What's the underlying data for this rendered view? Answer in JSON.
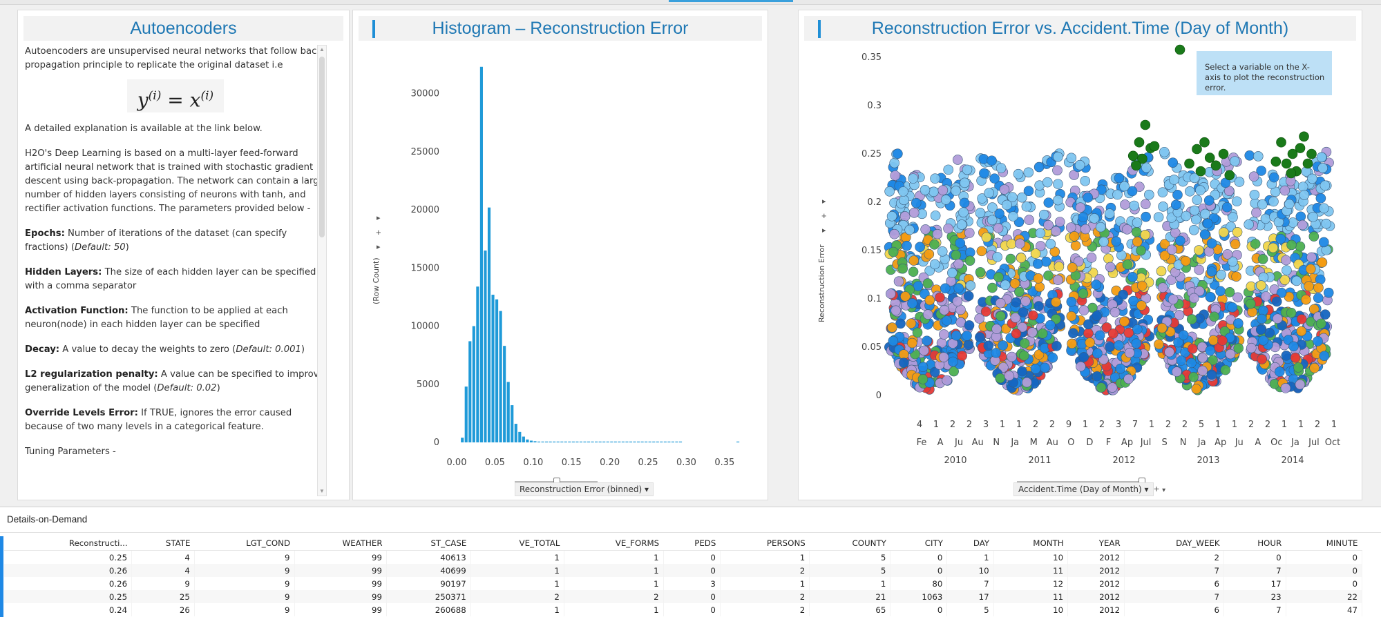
{
  "panels": {
    "autoencoders": {
      "title": "Autoencoders",
      "intro": "Autoencoders are unsupervised neural networks that follow back propagation principle to replicate the original dataset i.e",
      "equation_lhs": "y",
      "equation_sup": "(i)",
      "equation_eq": " = ",
      "equation_rhs": "x",
      "link_note": "A detailed explanation is available at the link below.",
      "h2o_text": "H2O's Deep Learning is based on a multi-layer feed-forward artificial neural network that is trained with stochastic gradient descent using back-propagation. The network can contain a large number of hidden layers consisting of neurons with tanh, and rectifier activation functions. The parameters provided below -",
      "params": [
        {
          "name": "Epochs:",
          "desc": " Number of iterations of the dataset (can specify fractions) (",
          "default": "Default: 50",
          "tail": ")"
        },
        {
          "name": "Hidden Layers:",
          "desc": " The size of each hidden layer can be specified with a comma separator",
          "default": "",
          "tail": ""
        },
        {
          "name": "Activation Function:",
          "desc": " The function to be applied at each neuron(node) in each hidden layer can be specified",
          "default": "",
          "tail": ""
        },
        {
          "name": "Decay:",
          "desc": " A value to decay the weights to zero (",
          "default": "Default: 0.001",
          "tail": ")"
        },
        {
          "name": "L2 regularization penalty:",
          "desc": " A value can be specified to improve generalization of the model (",
          "default": "Default: 0.02",
          "tail": ")"
        },
        {
          "name": "Override Levels Error:",
          "desc": " If TRUE, ignores the error caused because of two many levels in a categorical feature.",
          "default": "",
          "tail": ""
        }
      ],
      "tuning": "Tuning Parameters -"
    },
    "histogram": {
      "title": "Histogram – Reconstruction Error",
      "ylabel": "(Row Count)",
      "xaxis_dropdown": "Reconstruction Error (binned)",
      "side_controls": [
        "▸",
        "+",
        "▸"
      ]
    },
    "scatter": {
      "title": "Reconstruction Error vs. Accident.Time (Day of Month)",
      "ylabel": "Reconstruction Error",
      "xaxis_dropdown": "Accident.Time (Day of Month)",
      "tooltip": "Select a variable on the X-axis to plot the reconstruction error.",
      "side_controls": [
        "▸",
        "+",
        "▸"
      ],
      "plus_label": "+"
    }
  },
  "chart_data": [
    {
      "type": "bar",
      "title": "Histogram – Reconstruction Error",
      "xlabel": "Reconstruction Error (binned)",
      "ylabel": "(Row Count)",
      "xlim": [
        0.0,
        0.37
      ],
      "ylim": [
        0,
        33000
      ],
      "xticks": [
        "0.00",
        "0.05",
        "0.10",
        "0.15",
        "0.20",
        "0.25",
        "0.30",
        "0.35"
      ],
      "yticks": [
        "0",
        "5000",
        "10000",
        "15000",
        "20000",
        "25000",
        "30000"
      ],
      "bin_width": 0.005,
      "bins": [
        0.0,
        0.005,
        0.01,
        0.015,
        0.02,
        0.025,
        0.03,
        0.035,
        0.04,
        0.045,
        0.05,
        0.055,
        0.06,
        0.065,
        0.07,
        0.075,
        0.08,
        0.085,
        0.09,
        0.095,
        0.1,
        0.105,
        0.11,
        0.115,
        0.12,
        0.125,
        0.13,
        0.135,
        0.14,
        0.145,
        0.15,
        0.155,
        0.16,
        0.165,
        0.17,
        0.175,
        0.18,
        0.185,
        0.19,
        0.195,
        0.2,
        0.205,
        0.21,
        0.215,
        0.22,
        0.225,
        0.23,
        0.235,
        0.24,
        0.245,
        0.25,
        0.255,
        0.26,
        0.265,
        0.27,
        0.275,
        0.28,
        0.285,
        0.29,
        0.295,
        0.3,
        0.305,
        0.31,
        0.315,
        0.32,
        0.325,
        0.33,
        0.335,
        0.34,
        0.345,
        0.35,
        0.355,
        0.36,
        0.365
      ],
      "values": [
        0,
        400,
        4800,
        8700,
        10000,
        13400,
        32300,
        16500,
        20200,
        12700,
        12300,
        11300,
        8300,
        5200,
        3200,
        1600,
        900,
        500,
        250,
        150,
        100,
        70,
        50,
        40,
        30,
        30,
        25,
        20,
        20,
        20,
        20,
        20,
        20,
        20,
        20,
        20,
        20,
        20,
        20,
        20,
        20,
        20,
        20,
        20,
        20,
        20,
        20,
        20,
        20,
        20,
        20,
        20,
        20,
        20,
        20,
        20,
        20,
        20,
        20,
        0,
        0,
        0,
        0,
        0,
        0,
        0,
        0,
        0,
        0,
        0,
        0,
        0,
        0,
        60
      ],
      "color": "#1f9ad8"
    },
    {
      "type": "scatter",
      "title": "Reconstruction Error vs. Accident.Time (Day of Month)",
      "ylabel": "Reconstruction Error",
      "xlabel": "Accident.Time (Day of Month)",
      "ylim": [
        0,
        0.37
      ],
      "yticks": [
        "0",
        "0.05",
        "0.1",
        "0.15",
        "0.2",
        "0.25",
        "0.3",
        "0.35"
      ],
      "x_tick_labels_row1": [
        "4",
        "1",
        "2",
        "2",
        "3",
        "1",
        "1",
        "2",
        "2",
        "9",
        "1",
        "2",
        "3",
        "7",
        "1",
        "2",
        "2",
        "5",
        "1",
        "1",
        "2",
        "2",
        "1",
        "1",
        "2",
        "1"
      ],
      "x_tick_labels_row2": [
        "Fe",
        "A",
        "Ju",
        "Au",
        "N",
        "Ja",
        "M",
        "Au",
        "O",
        "D",
        "F",
        "Ap",
        "Jul",
        "S",
        "N",
        "Ja",
        "Ap",
        "Ju",
        "A",
        "Oc",
        "Ja",
        "Jul",
        "Oct"
      ],
      "x_years": [
        "2010",
        "2011",
        "2012",
        "2013",
        "2014"
      ],
      "palette": [
        "#1e88e5",
        "#7fc6f0",
        "#b19cd9",
        "#f1d64b",
        "#4caf50",
        "#f39c12",
        "#e53935",
        "#1565c0",
        "#a6d8f7"
      ],
      "outlier_color": "#1a7a1a",
      "outliers": [
        {
          "year": "2012",
          "offset": 0.78,
          "y": 0.28
        },
        {
          "year": "2012",
          "offset": 0.7,
          "y": 0.262
        },
        {
          "year": "2012",
          "offset": 0.85,
          "y": 0.256
        },
        {
          "year": "2012",
          "offset": 0.62,
          "y": 0.248
        },
        {
          "year": "2012",
          "offset": 0.74,
          "y": 0.245
        },
        {
          "year": "2012",
          "offset": 0.9,
          "y": 0.258
        },
        {
          "year": "2012",
          "offset": 0.66,
          "y": 0.238
        },
        {
          "year": "2013",
          "offset": 0.25,
          "y": 0.24
        },
        {
          "year": "2013",
          "offset": 0.35,
          "y": 0.255
        },
        {
          "year": "2013",
          "offset": 0.45,
          "y": 0.262
        },
        {
          "year": "2013",
          "offset": 0.52,
          "y": 0.246
        },
        {
          "year": "2013",
          "offset": 0.6,
          "y": 0.238
        },
        {
          "year": "2013",
          "offset": 0.4,
          "y": 0.232
        },
        {
          "year": "2013",
          "offset": 0.7,
          "y": 0.25
        },
        {
          "year": "2013",
          "offset": 0.78,
          "y": 0.228
        },
        {
          "year": "2014",
          "offset": 0.35,
          "y": 0.262
        },
        {
          "year": "2014",
          "offset": 0.5,
          "y": 0.25
        },
        {
          "year": "2014",
          "offset": 0.6,
          "y": 0.256
        },
        {
          "year": "2014",
          "offset": 0.42,
          "y": 0.24
        },
        {
          "year": "2014",
          "offset": 0.7,
          "y": 0.24
        },
        {
          "year": "2014",
          "offset": 0.28,
          "y": 0.242
        },
        {
          "year": "2014",
          "offset": 0.55,
          "y": 0.232
        },
        {
          "year": "2014",
          "offset": 0.75,
          "y": 0.25
        },
        {
          "year": "2014",
          "offset": 0.65,
          "y": 0.268
        },
        {
          "year": "2014",
          "offset": 0.48,
          "y": 0.23
        },
        {
          "legend_dot": true,
          "y": 0.37
        }
      ]
    }
  ],
  "details": {
    "title": "Details-on-Demand",
    "columns": [
      "Reconstructi...",
      "STATE",
      "LGT_COND",
      "WEATHER",
      "ST_CASE",
      "VE_TOTAL",
      "VE_FORMS",
      "PEDS",
      "PERSONS",
      "COUNTY",
      "CITY",
      "DAY",
      "MONTH",
      "YEAR",
      "DAY_WEEK",
      "HOUR",
      "MINUTE"
    ],
    "rows": [
      [
        "0.25",
        "4",
        "9",
        "99",
        "40613",
        "1",
        "1",
        "0",
        "1",
        "5",
        "0",
        "1",
        "10",
        "2012",
        "2",
        "0",
        "0"
      ],
      [
        "0.26",
        "4",
        "9",
        "99",
        "40699",
        "1",
        "1",
        "0",
        "2",
        "5",
        "0",
        "10",
        "11",
        "2012",
        "7",
        "7",
        "0"
      ],
      [
        "0.26",
        "9",
        "9",
        "99",
        "90197",
        "1",
        "1",
        "3",
        "1",
        "1",
        "80",
        "7",
        "12",
        "2012",
        "6",
        "17",
        "0"
      ],
      [
        "0.25",
        "25",
        "9",
        "99",
        "250371",
        "2",
        "2",
        "0",
        "2",
        "21",
        "1063",
        "17",
        "11",
        "2012",
        "7",
        "23",
        "22"
      ],
      [
        "0.24",
        "26",
        "9",
        "99",
        "260688",
        "1",
        "1",
        "0",
        "2",
        "65",
        "0",
        "5",
        "10",
        "2012",
        "6",
        "7",
        "47"
      ]
    ]
  }
}
